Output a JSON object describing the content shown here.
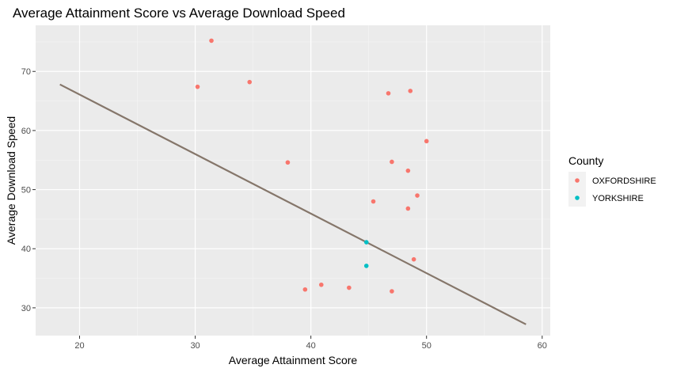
{
  "chart_data": {
    "type": "scatter",
    "title": "Average Attainment Score vs Average Download Speed",
    "xlabel": "Average Attainment Score",
    "ylabel": "Average Download Speed",
    "xlim": [
      16.2,
      60.7
    ],
    "ylim": [
      25.3,
      77.8
    ],
    "xticks": [
      20,
      30,
      40,
      50,
      60
    ],
    "yticks": [
      30,
      40,
      50,
      60,
      70
    ],
    "grid": true,
    "legend": {
      "title": "County",
      "position": "right",
      "entries": [
        {
          "name": "OXFORDSHIRE",
          "color": "#F8766D"
        },
        {
          "name": "YORKSHIRE",
          "color": "#00BFC4"
        }
      ]
    },
    "series": [
      {
        "name": "OXFORDSHIRE",
        "color": "#F8766D",
        "points": [
          [
            31.4,
            75.2
          ],
          [
            30.2,
            67.4
          ],
          [
            34.7,
            68.2
          ],
          [
            38.0,
            54.6
          ],
          [
            46.7,
            66.3
          ],
          [
            48.6,
            66.7
          ],
          [
            50.0,
            58.2
          ],
          [
            47.0,
            54.7
          ],
          [
            48.4,
            53.2
          ],
          [
            45.4,
            48.0
          ],
          [
            49.2,
            49.0
          ],
          [
            48.4,
            46.8
          ],
          [
            48.9,
            38.2
          ],
          [
            39.5,
            33.1
          ],
          [
            40.9,
            33.9
          ],
          [
            43.3,
            33.4
          ],
          [
            47.0,
            32.8
          ]
        ]
      },
      {
        "name": "YORKSHIRE",
        "color": "#00BFC4",
        "points": [
          [
            44.8,
            41.1
          ],
          [
            44.8,
            37.1
          ]
        ]
      }
    ],
    "trend_line": {
      "color": "#85766A",
      "points": [
        [
          18.3,
          67.8
        ],
        [
          58.6,
          27.2
        ]
      ]
    }
  }
}
